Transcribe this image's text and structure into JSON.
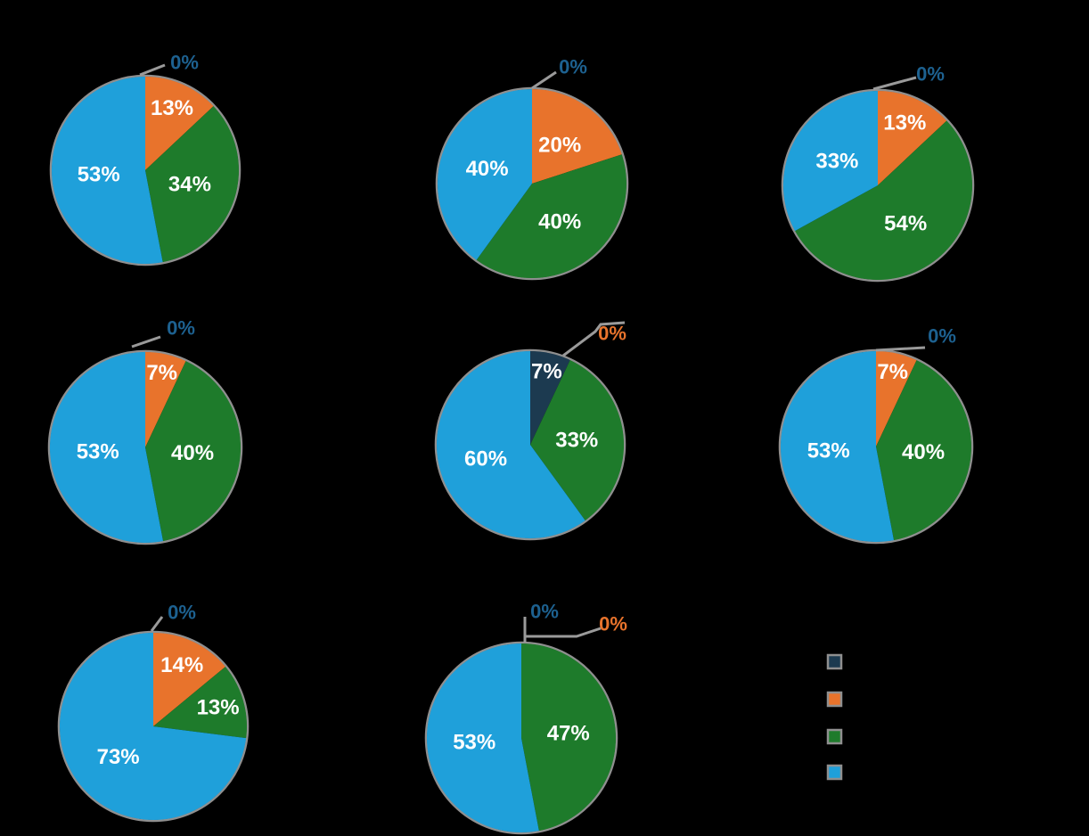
{
  "chart_data": {
    "type": "pie",
    "description": "Grid of 8 pie charts (3 columns x 3 rows, last cell is a legend). Slices labeled with bold white percentages; 0% slices labeled outside the pie with gray leader lines and series-colored text.",
    "series_order": [
      "navy",
      "orange",
      "green",
      "blue"
    ],
    "series_colors": {
      "navy": "#1C3A50",
      "orange": "#E8732C",
      "green": "#1E7B2B",
      "blue": "#1FA0DA"
    },
    "start_angle_deg": 90,
    "direction": "clockwise",
    "percent_suffix": "%",
    "zero_label_text": "0%",
    "pies": [
      {
        "grid_position": "row1-col1",
        "values": {
          "navy": 0,
          "orange": 13,
          "green": 34,
          "blue": 53
        },
        "zero_callouts": [
          "navy"
        ]
      },
      {
        "grid_position": "row1-col2",
        "values": {
          "navy": 0,
          "orange": 20,
          "green": 40,
          "blue": 40
        },
        "zero_callouts": [
          "navy"
        ]
      },
      {
        "grid_position": "row1-col3",
        "values": {
          "navy": 0,
          "orange": 13,
          "green": 54,
          "blue": 33
        },
        "zero_callouts": [
          "navy"
        ]
      },
      {
        "grid_position": "row2-col1",
        "values": {
          "navy": 0,
          "orange": 7,
          "green": 40,
          "blue": 53
        },
        "zero_callouts": [
          "navy"
        ]
      },
      {
        "grid_position": "row2-col2",
        "values": {
          "navy": 7,
          "orange": 0,
          "green": 33,
          "blue": 60
        },
        "zero_callouts": [
          "orange"
        ]
      },
      {
        "grid_position": "row2-col3",
        "values": {
          "navy": 0,
          "orange": 7,
          "green": 40,
          "blue": 53
        },
        "zero_callouts": [
          "navy"
        ]
      },
      {
        "grid_position": "row3-col1",
        "values": {
          "navy": 0,
          "orange": 14,
          "green": 13,
          "blue": 73
        },
        "zero_callouts": [
          "navy"
        ]
      },
      {
        "grid_position": "row3-col2",
        "values": {
          "navy": 0,
          "orange": 0,
          "green": 47,
          "blue": 53
        },
        "zero_callouts": [
          "navy",
          "orange"
        ]
      }
    ]
  },
  "legend": {
    "position": "bottom-right",
    "label_text_visible": false,
    "items": [
      {
        "series": "navy"
      },
      {
        "series": "orange"
      },
      {
        "series": "green"
      },
      {
        "series": "blue"
      }
    ]
  },
  "colors": {
    "background": "#000000",
    "pie_rim": "#8F8F8F",
    "leader_line": "#9A9A9A",
    "inside_label": "#FFFFFF",
    "zero_label_navy": "#1D6190",
    "zero_label_orange": "#E8732C",
    "legend_swatch_border": "#8F8F8F"
  }
}
